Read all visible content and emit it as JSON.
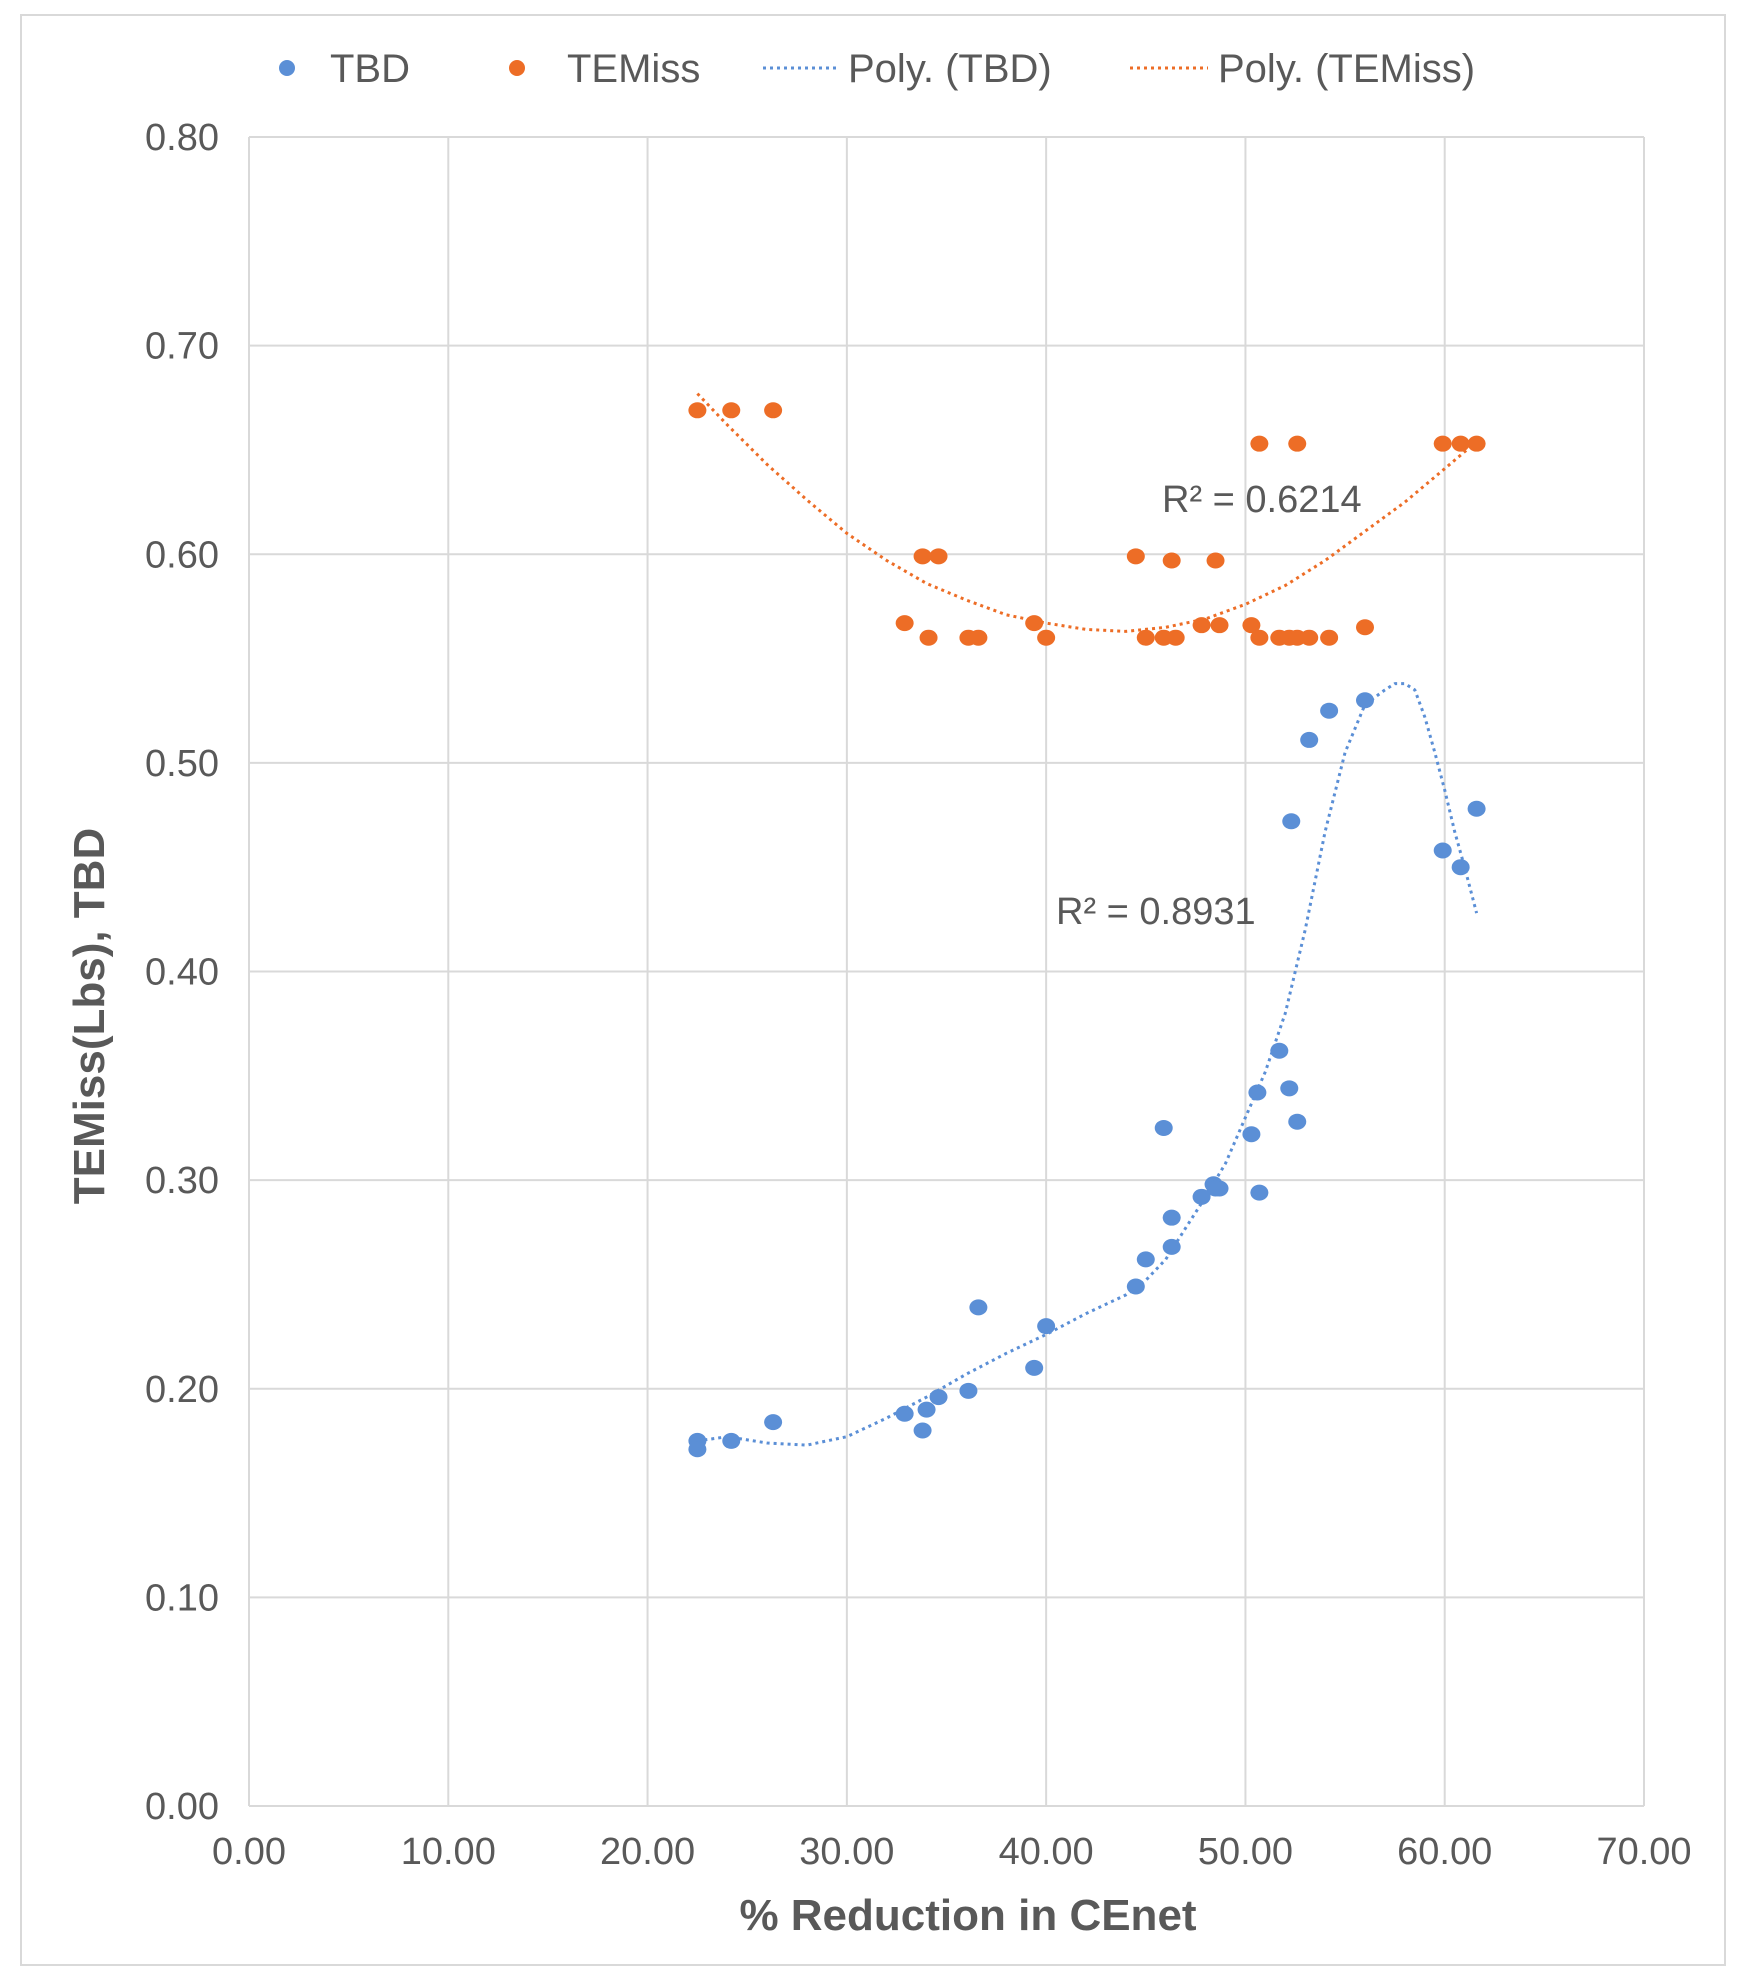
{
  "chart_data": {
    "type": "scatter",
    "title": "",
    "xlabel": "% Reduction in CEnet",
    "ylabel": "TEMiss(Lbs), TBD",
    "xlim": [
      0,
      70
    ],
    "ylim": [
      0,
      0.8
    ],
    "x_ticks": [
      "0.00",
      "10.00",
      "20.00",
      "30.00",
      "40.00",
      "50.00",
      "60.00",
      "70.00"
    ],
    "y_ticks": [
      "0.00",
      "0.10",
      "0.20",
      "0.30",
      "0.40",
      "0.50",
      "0.60",
      "0.70",
      "0.80"
    ],
    "grid": true,
    "legend_position": "top",
    "legend": [
      "TBD",
      "TEMiss",
      "Poly. (TBD)",
      "Poly. (TEMiss)"
    ],
    "colors": {
      "TBD": "#5b8fd6",
      "TEMiss": "#ed6d26",
      "grid": "#d9d9d9",
      "text": "#595959"
    },
    "series": [
      {
        "name": "TBD",
        "x": [
          22.5,
          22.5,
          24.2,
          26.3,
          32.9,
          33.8,
          34.0,
          34.6,
          36.1,
          36.6,
          39.4,
          40.0,
          44.5,
          45.0,
          45.9,
          46.3,
          46.3,
          47.8,
          48.4,
          48.7,
          48.5,
          50.3,
          50.6,
          50.7,
          51.7,
          52.2,
          52.3,
          52.6,
          53.2,
          54.2,
          56.0,
          59.9,
          60.8,
          61.6
        ],
        "y": [
          0.175,
          0.171,
          0.175,
          0.184,
          0.188,
          0.18,
          0.19,
          0.196,
          0.199,
          0.239,
          0.21,
          0.23,
          0.249,
          0.262,
          0.325,
          0.268,
          0.282,
          0.292,
          0.298,
          0.296,
          0.296,
          0.322,
          0.342,
          0.294,
          0.362,
          0.344,
          0.472,
          0.328,
          0.511,
          0.525,
          0.53,
          0.458,
          0.45,
          0.478
        ]
      },
      {
        "name": "TEMiss",
        "x": [
          22.5,
          24.2,
          26.3,
          32.9,
          33.8,
          34.1,
          34.6,
          36.1,
          36.6,
          39.4,
          40.0,
          44.5,
          45.0,
          45.9,
          46.3,
          46.5,
          47.8,
          48.5,
          48.7,
          50.3,
          50.7,
          50.7,
          51.7,
          52.2,
          52.6,
          52.6,
          53.2,
          54.2,
          56.0,
          59.9,
          60.8,
          61.6
        ],
        "y": [
          0.669,
          0.669,
          0.669,
          0.567,
          0.599,
          0.56,
          0.599,
          0.56,
          0.56,
          0.567,
          0.56,
          0.599,
          0.56,
          0.56,
          0.597,
          0.56,
          0.566,
          0.597,
          0.566,
          0.566,
          0.56,
          0.653,
          0.56,
          0.56,
          0.56,
          0.653,
          0.56,
          0.56,
          0.565,
          0.653,
          0.653,
          0.653
        ]
      }
    ],
    "trendlines": [
      {
        "name": "Poly. (TBD)",
        "label": "R² = 0.8931",
        "x": [
          22.5,
          24,
          26,
          28,
          30,
          32,
          34,
          36,
          38,
          40,
          42,
          44,
          45,
          46,
          47,
          48,
          49,
          50,
          51,
          52,
          53,
          54,
          55,
          56,
          57,
          57.5,
          58,
          58.5,
          59,
          59.5,
          60,
          60.5,
          61,
          61.6
        ],
        "y": [
          0.175,
          0.177,
          0.174,
          0.173,
          0.177,
          0.186,
          0.196,
          0.207,
          0.217,
          0.226,
          0.236,
          0.245,
          0.252,
          0.262,
          0.277,
          0.292,
          0.308,
          0.33,
          0.352,
          0.38,
          0.42,
          0.467,
          0.505,
          0.528,
          0.535,
          0.538,
          0.538,
          0.535,
          0.522,
          0.505,
          0.487,
          0.467,
          0.45,
          0.428
        ]
      },
      {
        "name": "Poly. (TEMiss)",
        "label": "R² = 0.6214",
        "x": [
          22.5,
          24,
          26,
          28,
          30,
          32,
          34,
          36,
          38,
          40,
          42,
          44,
          46,
          48,
          50,
          52,
          54,
          56,
          58,
          60,
          61.6
        ],
        "y": [
          0.677,
          0.662,
          0.643,
          0.626,
          0.61,
          0.597,
          0.586,
          0.578,
          0.571,
          0.567,
          0.564,
          0.563,
          0.565,
          0.569,
          0.576,
          0.585,
          0.597,
          0.611,
          0.625,
          0.641,
          0.654
        ]
      }
    ]
  }
}
